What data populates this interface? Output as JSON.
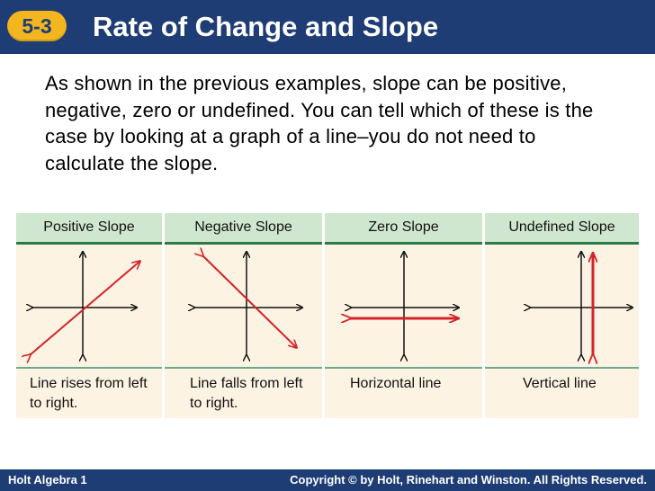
{
  "header": {
    "badge": "5-3",
    "title": "Rate of Change and Slope"
  },
  "intro": "As shown in the previous examples, slope can be positive, negative, zero or undefined. You can tell which of these is the case by looking at a graph of a line–you do not need to calculate the slope.",
  "table": {
    "columns": [
      {
        "heading": "Positive Slope",
        "caption": "Line rises from left to right.",
        "icon": "positive-slope-graph-icon"
      },
      {
        "heading": "Negative Slope",
        "caption": "Line falls from left to right.",
        "icon": "negative-slope-graph-icon"
      },
      {
        "heading": "Zero Slope",
        "caption": "Horizontal line",
        "icon": "zero-slope-graph-icon"
      },
      {
        "heading": "Undefined Slope",
        "caption": "Vertical line",
        "icon": "undefined-slope-graph-icon"
      }
    ]
  },
  "colors": {
    "header_bg": "#1f3d75",
    "badge_bg": "#f3b61f",
    "table_head_bg": "#cfe6cf",
    "table_body_bg": "#fdf3e3",
    "line_red": "#d4232b"
  },
  "footer": {
    "left": "Holt Algebra 1",
    "right": "Copyright © by Holt, Rinehart and Winston. All Rights Reserved."
  }
}
